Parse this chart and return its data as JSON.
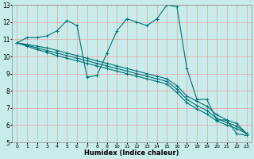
{
  "xlabel": "Humidex (Indice chaleur)",
  "bg_color": "#c8ecec",
  "grid_color": "#e8a0a0",
  "line_color": "#007070",
  "xlim": [
    -0.5,
    23.5
  ],
  "ylim": [
    5,
    13
  ],
  "yticks": [
    5,
    6,
    7,
    8,
    9,
    10,
    11,
    12,
    13
  ],
  "xticks": [
    0,
    1,
    2,
    3,
    4,
    5,
    6,
    7,
    8,
    9,
    10,
    11,
    12,
    13,
    14,
    15,
    16,
    17,
    18,
    19,
    20,
    21,
    22,
    23
  ],
  "lines": [
    {
      "x": [
        0,
        1,
        2,
        3,
        4,
        5,
        6,
        7,
        8,
        9,
        10,
        11,
        12,
        13,
        14,
        15,
        16,
        17,
        18,
        19,
        20,
        21,
        22,
        23
      ],
      "y": [
        10.8,
        11.1,
        11.1,
        11.2,
        11.5,
        12.1,
        11.8,
        8.8,
        8.9,
        10.2,
        11.5,
        12.2,
        12.0,
        11.8,
        12.2,
        13.0,
        12.9,
        9.3,
        7.5,
        7.5,
        6.3,
        6.3,
        5.5,
        5.4
      ]
    },
    {
      "x": [
        0,
        1,
        2,
        3,
        4,
        5,
        6,
        7,
        8,
        9,
        10,
        11,
        12,
        13,
        14,
        15,
        16,
        17,
        18,
        19,
        20,
        21,
        22,
        23
      ],
      "y": [
        10.8,
        10.7,
        10.6,
        10.5,
        10.35,
        10.2,
        10.05,
        9.9,
        9.75,
        9.6,
        9.45,
        9.3,
        9.15,
        9.0,
        8.85,
        8.7,
        8.3,
        7.7,
        7.4,
        7.1,
        6.6,
        6.3,
        6.1,
        5.5
      ]
    },
    {
      "x": [
        0,
        1,
        2,
        3,
        4,
        5,
        6,
        7,
        8,
        9,
        10,
        11,
        12,
        13,
        14,
        15,
        16,
        17,
        18,
        19,
        20,
        21,
        22,
        23
      ],
      "y": [
        10.8,
        10.65,
        10.5,
        10.35,
        10.2,
        10.05,
        9.9,
        9.75,
        9.6,
        9.45,
        9.3,
        9.15,
        9.0,
        8.85,
        8.7,
        8.55,
        8.1,
        7.5,
        7.15,
        6.85,
        6.4,
        6.15,
        5.95,
        5.5
      ]
    },
    {
      "x": [
        0,
        1,
        2,
        3,
        4,
        5,
        6,
        7,
        8,
        9,
        10,
        11,
        12,
        13,
        14,
        15,
        16,
        17,
        18,
        19,
        20,
        21,
        22,
        23
      ],
      "y": [
        10.8,
        10.6,
        10.4,
        10.25,
        10.05,
        9.9,
        9.75,
        9.6,
        9.45,
        9.3,
        9.15,
        9.0,
        8.85,
        8.7,
        8.55,
        8.4,
        7.9,
        7.3,
        6.95,
        6.65,
        6.25,
        6.0,
        5.8,
        5.5
      ]
    }
  ]
}
